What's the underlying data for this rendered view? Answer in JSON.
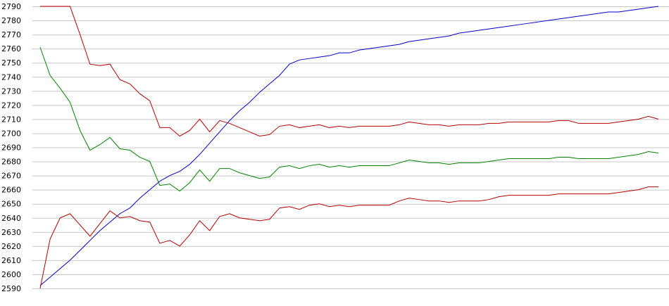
{
  "chart_data": {
    "type": "line",
    "ylim": [
      2590,
      2790
    ],
    "yticks": [
      2590,
      2600,
      2610,
      2620,
      2630,
      2640,
      2650,
      2660,
      2670,
      2680,
      2690,
      2700,
      2710,
      2720,
      2730,
      2740,
      2750,
      2760,
      2770,
      2780,
      2790
    ],
    "grid": true,
    "series": [
      {
        "color": "#0000c8",
        "values": [
          2592,
          2598,
          2604,
          2610,
          2617,
          2624,
          2631,
          2637,
          2643,
          2647,
          2654,
          2660,
          2666,
          2670,
          2673,
          2678,
          2685,
          2693,
          2701,
          2709,
          2716,
          2722,
          2729,
          2735,
          2741,
          2749,
          2752,
          2753,
          2754,
          2755,
          2757,
          2757,
          2759,
          2760,
          2761,
          2762,
          2763,
          2765,
          2766,
          2767,
          2768,
          2769,
          2771,
          2772,
          2773,
          2774,
          2775,
          2776,
          2777,
          2778,
          2779,
          2780,
          2781,
          2782,
          2783,
          2784,
          2785,
          2786,
          2786,
          2787,
          2788,
          2789,
          2790
        ]
      },
      {
        "color": "#b40000",
        "values": [
          2790,
          2790,
          2790,
          2790,
          2770,
          2749,
          2748,
          2749,
          2738,
          2735,
          2728,
          2723,
          2704,
          2704,
          2698,
          2702,
          2710,
          2701,
          2709,
          2707,
          2704,
          2701,
          2698,
          2699,
          2705,
          2706,
          2704,
          2705,
          2706,
          2704,
          2705,
          2704,
          2705,
          2705,
          2705,
          2705,
          2706,
          2708,
          2707,
          2706,
          2706,
          2705,
          2706,
          2706,
          2706,
          2707,
          2707,
          2708,
          2708,
          2708,
          2708,
          2708,
          2709,
          2709,
          2707,
          2707,
          2707,
          2707,
          2708,
          2709,
          2710,
          2712,
          2710
        ]
      },
      {
        "color": "#008000",
        "values": [
          2761,
          2741,
          2732,
          2722,
          2702,
          2688,
          2692,
          2697,
          2689,
          2688,
          2683,
          2680,
          2663,
          2664,
          2659,
          2665,
          2674,
          2666,
          2675,
          2675,
          2672,
          2670,
          2668,
          2669,
          2676,
          2677,
          2675,
          2677,
          2678,
          2676,
          2677,
          2676,
          2677,
          2677,
          2677,
          2677,
          2679,
          2681,
          2680,
          2679,
          2679,
          2678,
          2679,
          2679,
          2679,
          2680,
          2681,
          2682,
          2682,
          2682,
          2682,
          2682,
          2683,
          2683,
          2682,
          2682,
          2682,
          2682,
          2683,
          2684,
          2685,
          2687,
          2686
        ]
      },
      {
        "color": "#b40000",
        "values": [
          2590,
          2625,
          2640,
          2643,
          2635,
          2627,
          2636,
          2645,
          2640,
          2641,
          2638,
          2637,
          2622,
          2624,
          2620,
          2628,
          2638,
          2631,
          2641,
          2643,
          2640,
          2639,
          2638,
          2639,
          2647,
          2648,
          2646,
          2649,
          2650,
          2648,
          2649,
          2648,
          2649,
          2649,
          2649,
          2649,
          2652,
          2654,
          2653,
          2652,
          2652,
          2651,
          2652,
          2652,
          2652,
          2653,
          2655,
          2656,
          2656,
          2656,
          2656,
          2656,
          2657,
          2657,
          2657,
          2657,
          2657,
          2657,
          2658,
          2659,
          2660,
          2662,
          2662
        ]
      }
    ]
  }
}
